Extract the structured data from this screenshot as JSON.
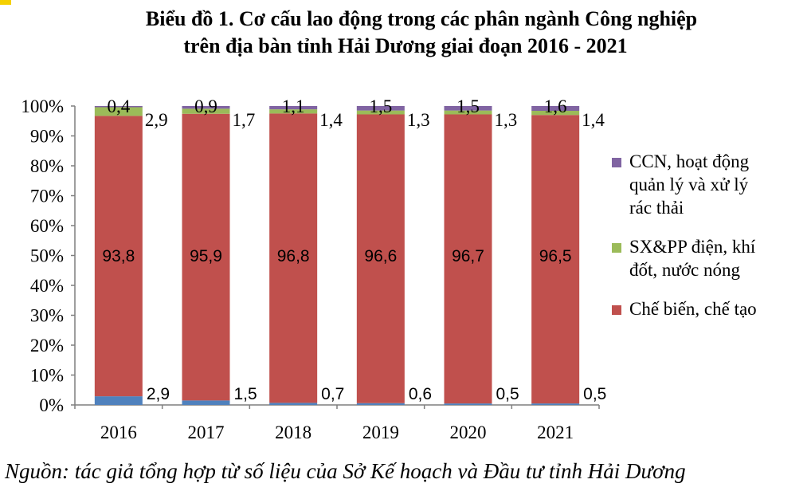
{
  "colors": {
    "ccn": "#8064a2",
    "sxpp": "#9bbb59",
    "chebien": "#c0504d",
    "khaikhoang": "#4f81bd",
    "axis": "#7f7f7f",
    "corner": "#f5d000"
  },
  "title_line1": "Biểu đồ 1. Cơ cấu lao động trong các phân ngành Công nghiệp",
  "title_line2": "trên địa bàn tỉnh Hải Dương giai đoạn 2016 - 2021",
  "source": "Nguồn: tác giả tổng hợp từ số liệu của Sở Kế hoạch và Đầu tư tỉnh Hải Dương",
  "chart_data": {
    "type": "bar",
    "stacked": "percent",
    "title": "Biểu đồ 1. Cơ cấu lao động trong các phân ngành Công nghiệp trên địa bàn tỉnh Hải Dương giai đoạn 2016 - 2021",
    "categories": [
      "2016",
      "2017",
      "2018",
      "2019",
      "2020",
      "2021"
    ],
    "y_ticks": [
      "0%",
      "10%",
      "20%",
      "30%",
      "40%",
      "50%",
      "60%",
      "70%",
      "80%",
      "90%",
      "100%"
    ],
    "ylim": [
      0,
      100
    ],
    "grid": false,
    "legend_position": "right",
    "series": [
      {
        "values": [
          2.9,
          1.5,
          0.7,
          0.6,
          0.5,
          0.5
        ],
        "labels": [
          "2,9",
          "1,5",
          "0,7",
          "0,6",
          "0,5",
          "0,5"
        ],
        "color": "#4f81bd"
      },
      {
        "name": "Chế biến, chế tạo",
        "values": [
          93.8,
          95.9,
          96.8,
          96.6,
          96.7,
          96.5
        ],
        "labels": [
          "93,8",
          "95,9",
          "96,8",
          "96,6",
          "96,7",
          "96,5"
        ],
        "color": "#c0504d"
      },
      {
        "name": "SX&PP điện, khí đốt, nước nóng",
        "values": [
          2.9,
          1.7,
          1.4,
          1.3,
          1.3,
          1.4
        ],
        "labels": [
          "2,9",
          "1,7",
          "1,4",
          "1,3",
          "1,3",
          "1,4"
        ],
        "color": "#9bbb59"
      },
      {
        "name": "CCN, hoạt động quản lý và xử lý rác thải",
        "values": [
          0.4,
          0.9,
          1.1,
          1.5,
          1.5,
          1.6
        ],
        "labels": [
          "0,4",
          "0,9",
          "1,1",
          "1,5",
          "1,5",
          "1,6"
        ],
        "color": "#8064a2"
      }
    ]
  },
  "legend": [
    {
      "key": "ccn",
      "lines": [
        "CCN, hoạt động",
        "quản lý và xử lý",
        "rác thải"
      ]
    },
    {
      "key": "sxpp",
      "lines": [
        "SX&PP điện, khí",
        "đốt, nước nóng"
      ]
    },
    {
      "key": "chebien",
      "lines": [
        "Chế biến, chế tạo"
      ]
    }
  ]
}
